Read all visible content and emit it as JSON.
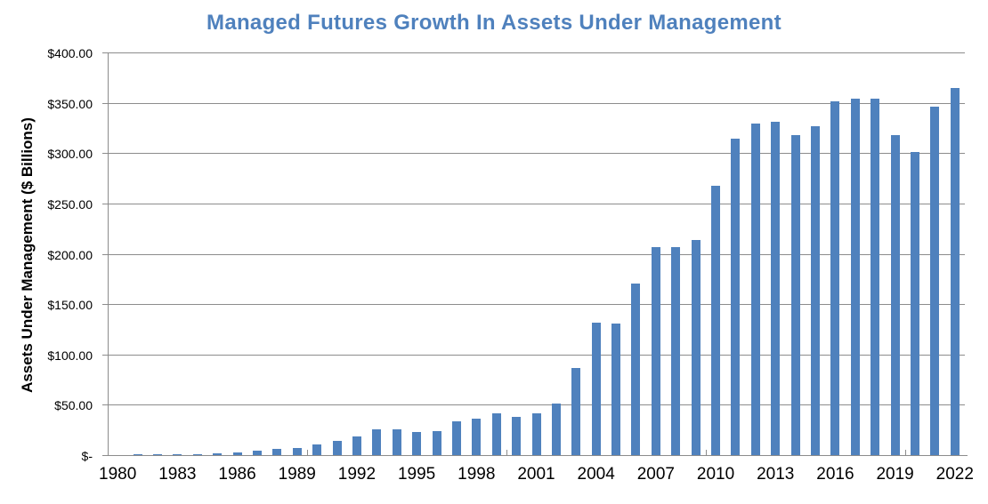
{
  "title": "Managed Futures Growth In Assets Under Management",
  "colors": {
    "bar": "#4F81BD",
    "title": "#4F81BD",
    "axis": "#8C8C8C",
    "text": "#000000",
    "background": "#FFFFFF"
  },
  "chart_data": {
    "type": "bar",
    "title": "Managed Futures Growth In Assets Under Management",
    "xlabel": "",
    "ylabel": "Assets Under Management ($ Billions)",
    "ylim": [
      0,
      400
    ],
    "y_tick_interval": 50,
    "y_tick_labels": [
      "$-",
      "$50.00",
      "$100.00",
      "$150.00",
      "$200.00",
      "$250.00",
      "$300.00",
      "$350.00",
      "$400.00"
    ],
    "x_tick_labels": [
      "1980",
      "1983",
      "1986",
      "1989",
      "1992",
      "1995",
      "1998",
      "2001",
      "2004",
      "2007",
      "2010",
      "2013",
      "2016",
      "2019",
      "2022"
    ],
    "x_label_interval": 3,
    "grid": true,
    "legend": false,
    "categories": [
      1980,
      1981,
      1982,
      1983,
      1984,
      1985,
      1986,
      1987,
      1988,
      1989,
      1990,
      1991,
      1992,
      1993,
      1994,
      1995,
      1996,
      1997,
      1998,
      1999,
      2000,
      2001,
      2002,
      2003,
      2004,
      2005,
      2006,
      2007,
      2008,
      2009,
      2010,
      2011,
      2012,
      2013,
      2014,
      2015,
      2016,
      2017,
      2018,
      2019,
      2020,
      2021,
      2022
    ],
    "values": [
      0.31,
      0.45,
      0.61,
      0.76,
      0.88,
      1.5,
      2.4,
      4.2,
      5.8,
      7.0,
      10.5,
      14.5,
      18.7,
      26.0,
      25.5,
      22.8,
      24.0,
      33.2,
      35.9,
      41.3,
      37.9,
      41.3,
      50.9,
      86.5,
      131.9,
      130.6,
      170.0,
      206.6,
      206.4,
      213.7,
      267.6,
      314.3,
      329.6,
      331.0,
      317.9,
      327.1,
      351.0,
      354.5,
      354.5,
      318.0,
      301.0,
      346.3,
      364.7
    ]
  }
}
